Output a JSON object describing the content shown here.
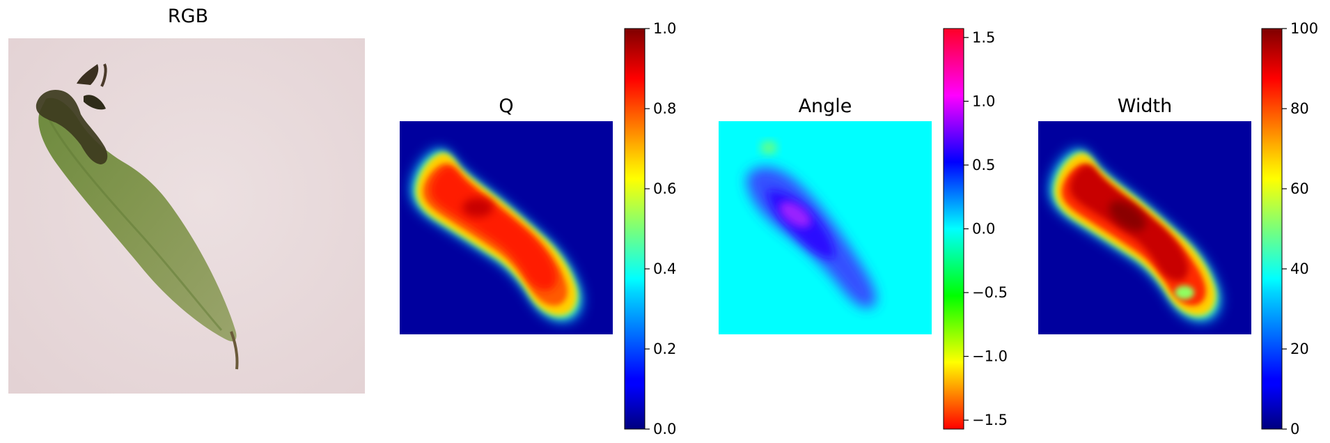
{
  "chart_data": [
    {
      "type": "image",
      "title": "RGB",
      "content": "green pea pod on light pink background"
    },
    {
      "type": "heatmap",
      "title": "Q",
      "colormap": "jet",
      "colorbar": {
        "range": [
          0.0,
          1.0
        ],
        "ticks": [
          "0.0",
          "0.2",
          "0.4",
          "0.6",
          "0.8",
          "1.0"
        ]
      }
    },
    {
      "type": "heatmap",
      "title": "Angle",
      "colormap": "hsv",
      "colorbar": {
        "range": [
          -1.57,
          1.57
        ],
        "ticks": [
          "−1.5",
          "−1.0",
          "−0.5",
          "0.0",
          "0.5",
          "1.0",
          "1.5"
        ]
      }
    },
    {
      "type": "heatmap",
      "title": "Width",
      "colormap": "jet",
      "colorbar": {
        "range": [
          0,
          100
        ],
        "ticks": [
          "0",
          "20",
          "40",
          "60",
          "80",
          "100"
        ]
      }
    }
  ]
}
